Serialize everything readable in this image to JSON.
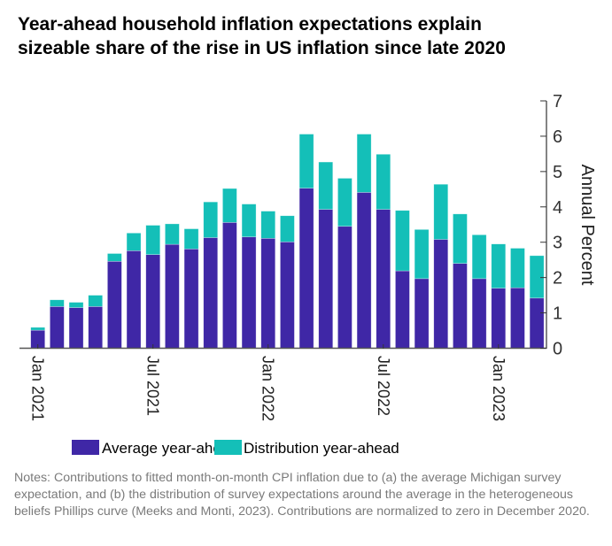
{
  "title": {
    "line1": "Year-ahead household inflation expectations explain",
    "line2": "sizeable share of the rise in US inflation since late 2020"
  },
  "notes": "Notes: Contributions to fitted month-on-month CPI inflation due to (a) the average Michigan survey expectation, and (b) the distribution of survey expectations around the average in the heterogeneous beliefs Phillips curve (Meeks and Monti, 2023). Contributions are normalized to zero in December 2020.",
  "chart_data": {
    "type": "bar",
    "stacked": true,
    "categories": [
      "Jan 2021",
      "Feb 2021",
      "Mar 2021",
      "Apr 2021",
      "May 2021",
      "Jun 2021",
      "Jul 2021",
      "Aug 2021",
      "Sep 2021",
      "Oct 2021",
      "Nov 2021",
      "Dec 2021",
      "Jan 2022",
      "Feb 2022",
      "Mar 2022",
      "Apr 2022",
      "May 2022",
      "Jun 2022",
      "Jul 2022",
      "Aug 2022",
      "Sep 2022",
      "Oct 2022",
      "Nov 2022",
      "Dec 2022",
      "Jan 2023",
      "Feb 2023",
      "Mar 2023"
    ],
    "x_tick_labels": [
      "Jan 2021",
      "Jul 2021",
      "Jan 2022",
      "Jul 2022",
      "Jan 2023"
    ],
    "series": [
      {
        "name": "Average year-ahead",
        "color": "#3f27a6",
        "values": [
          0.51,
          1.18,
          1.15,
          1.18,
          2.46,
          2.76,
          2.65,
          2.94,
          2.81,
          3.13,
          3.56,
          3.15,
          3.11,
          3.01,
          4.53,
          3.93,
          3.45,
          4.41,
          3.93,
          2.19,
          1.97,
          3.08,
          2.4,
          1.97,
          1.7,
          1.71,
          1.42
        ]
      },
      {
        "name": "Distribution year-ahead",
        "color": "#14bfb8",
        "values": [
          0.08,
          0.19,
          0.15,
          0.32,
          0.22,
          0.5,
          0.83,
          0.58,
          0.57,
          1.01,
          0.96,
          0.93,
          0.77,
          0.74,
          1.53,
          1.34,
          1.36,
          1.65,
          1.56,
          1.71,
          1.39,
          1.56,
          1.4,
          1.24,
          1.25,
          1.12,
          1.2
        ]
      }
    ],
    "ylabel": "Annual Percent",
    "ylim": [
      0,
      7
    ],
    "y_ticks": [
      "0",
      "1",
      "2",
      "3",
      "4",
      "5",
      "6",
      "7"
    ],
    "y_axis_side": "right",
    "grid": false,
    "legend_placement": "bottom"
  }
}
